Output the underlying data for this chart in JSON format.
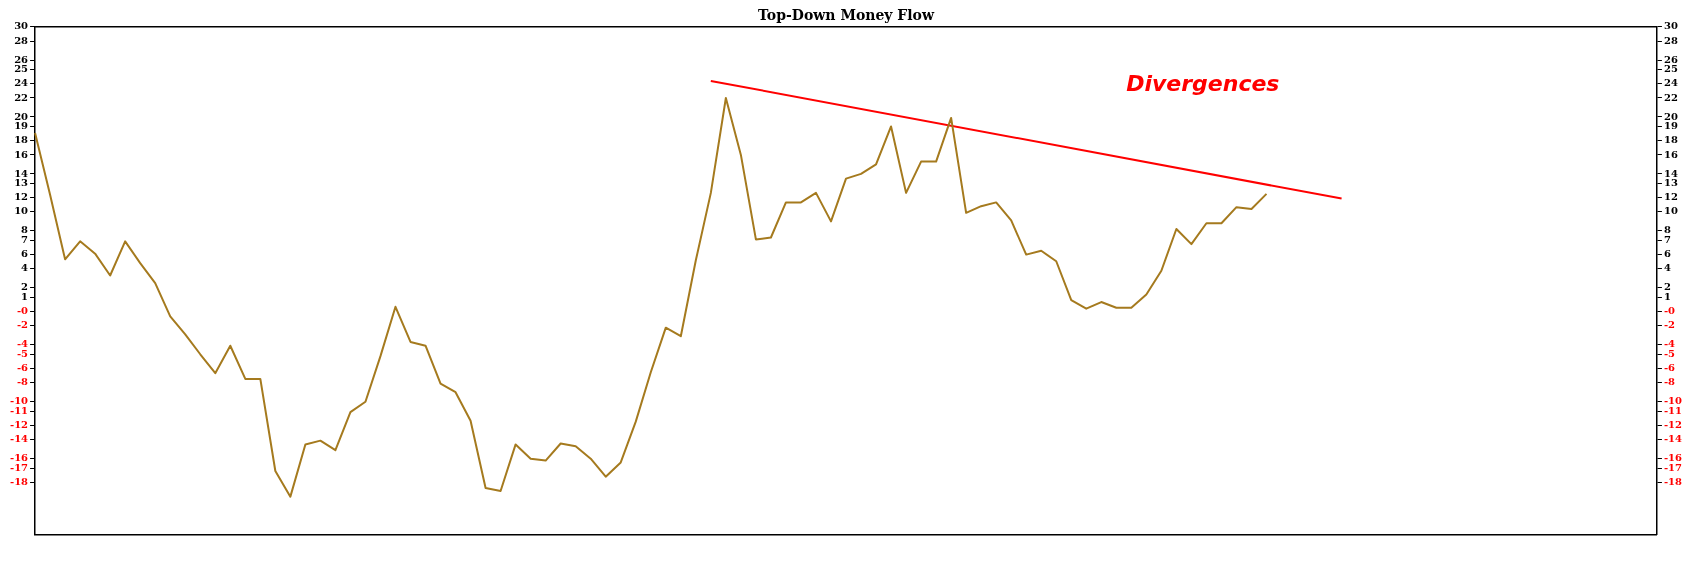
{
  "chart_data": {
    "type": "line",
    "title": "Top-Down Money Flow",
    "categories": [
      null,
      null,
      null,
      null,
      null,
      null,
      null,
      null,
      null,
      null,
      null,
      null,
      null,
      null,
      null,
      null,
      null,
      null,
      null,
      null,
      null,
      null,
      null,
      null,
      null,
      null,
      null,
      null,
      null,
      null,
      null,
      null,
      null,
      null,
      null,
      null,
      null,
      null,
      null,
      null,
      null,
      null,
      null,
      null,
      null,
      null,
      null,
      null,
      null,
      null,
      null,
      null,
      null,
      null,
      null,
      null,
      null,
      null,
      null,
      null,
      null,
      null,
      null,
      null,
      null,
      null,
      null,
      null,
      null,
      null,
      null,
      null,
      null,
      null,
      null,
      null,
      null,
      null,
      null,
      null,
      null,
      null,
      null,
      null,
      null,
      null,
      null,
      null,
      null,
      null,
      null,
      null,
      null,
      null,
      null,
      null,
      null,
      null,
      null,
      null,
      null,
      null,
      null,
      null,
      null,
      null,
      null,
      null,
      null
    ],
    "ylim": [
      -23.5,
      30
    ],
    "yticks": [
      30,
      {
        "value": 28.5,
        "label": "28"
      },
      {
        "value": 26.5,
        "label": "26"
      },
      {
        "value": 25.5,
        "label": "25"
      },
      24,
      {
        "value": 22.5,
        "label": "22"
      },
      {
        "value": 20.5,
        "label": "20"
      },
      {
        "value": 19.5,
        "label": "19"
      },
      18,
      {
        "value": 16.5,
        "label": "16"
      },
      {
        "value": 14.5,
        "label": "14"
      },
      {
        "value": 13.5,
        "label": "13"
      },
      12,
      {
        "value": 10.5,
        "label": "10"
      },
      {
        "value": 8.5,
        "label": "8"
      },
      {
        "value": 7.5,
        "label": "7"
      },
      6,
      {
        "value": 4.5,
        "label": "4"
      },
      {
        "value": 2.5,
        "label": "2"
      },
      {
        "value": 1.5,
        "label": "1"
      },
      {
        "value": 0,
        "label": "-0"
      },
      {
        "value": -1.5,
        "label": "-2"
      },
      {
        "value": -3.5,
        "label": "-4"
      },
      {
        "value": -4.5,
        "label": "-5"
      },
      -6,
      {
        "value": -7.5,
        "label": "-8"
      },
      {
        "value": -9.5,
        "label": "-10"
      },
      {
        "value": -10.5,
        "label": "-11"
      },
      -12,
      {
        "value": -13.5,
        "label": "-14"
      },
      {
        "value": -15.5,
        "label": "-16"
      },
      {
        "value": -16.5,
        "label": "-17"
      },
      -18
    ],
    "y2lim": [
      -23.5,
      30
    ],
    "y2ticks": [
      30,
      {
        "value": 28.5,
        "label": "28"
      },
      {
        "value": 26.5,
        "label": "26"
      },
      {
        "value": 25.5,
        "label": "25"
      },
      24,
      {
        "value": 22.5,
        "label": "22"
      },
      {
        "value": 20.5,
        "label": "20"
      },
      {
        "value": 19.5,
        "label": "19"
      },
      18,
      {
        "value": 16.5,
        "label": "16"
      },
      {
        "value": 14.5,
        "label": "14"
      },
      {
        "value": 13.5,
        "label": "13"
      },
      12,
      {
        "value": 10.5,
        "label": "10"
      },
      {
        "value": 8.5,
        "label": "8"
      },
      {
        "value": 7.5,
        "label": "7"
      },
      6,
      {
        "value": 4.5,
        "label": "4"
      },
      {
        "value": 2.5,
        "label": "2"
      },
      {
        "value": 1.5,
        "label": "1"
      },
      {
        "value": 0,
        "label": "-0"
      },
      {
        "value": -1.5,
        "label": "-2"
      },
      {
        "value": -3.5,
        "label": "-4"
      },
      {
        "value": -4.5,
        "label": "-5"
      },
      -6,
      {
        "value": -7.5,
        "label": "-8"
      },
      {
        "value": -9.5,
        "label": "-10"
      },
      {
        "value": -10.5,
        "label": "-11"
      },
      -12,
      {
        "value": -13.5,
        "label": "-14"
      },
      {
        "value": -15.5,
        "label": "-16"
      },
      {
        "value": -16.5,
        "label": "-17"
      },
      -18
    ],
    "grid": false,
    "legend": false,
    "marker": "none",
    "line_style": "solid",
    "annotations": [
      "Divergences"
    ],
    "series": [
      {
        "color": "#a57a1e",
        "values": [
          18.8,
          12.3,
          5.5,
          7.4,
          6.1,
          3.8,
          7.4,
          5.1,
          3.0,
          -0.5,
          -2.4,
          -4.5,
          -6.5,
          -3.6,
          -7.1,
          -7.1,
          -16.8,
          -19.5,
          -14.0,
          -13.6,
          -14.6,
          -10.6,
          -9.5,
          -4.7,
          0.5,
          -3.2,
          -3.6,
          -7.6,
          -8.5,
          -11.5,
          -18.6,
          -18.9,
          -14.0,
          -15.5,
          -15.7,
          -13.9,
          -14.2,
          -15.5,
          -17.4,
          -15.9,
          -11.6,
          -6.4,
          -1.7,
          -2.6,
          5.4,
          12.5,
          22.5,
          16.5,
          7.6,
          7.8,
          11.5,
          11.5,
          12.5,
          9.5,
          14.0,
          14.5,
          15.5,
          19.5,
          12.5,
          15.8,
          15.8,
          20.4,
          10.4,
          11.1,
          11.5,
          9.6,
          6.0,
          6.4,
          5.3,
          1.2,
          0.3,
          1.0,
          0.4,
          0.4,
          1.8,
          4.3,
          8.7,
          7.1,
          9.3,
          9.3,
          11.0,
          10.8,
          12.4,
          null,
          null,
          null,
          null,
          null,
          null,
          null,
          null,
          null,
          null,
          null,
          null,
          null,
          null,
          null,
          null,
          null,
          null,
          null,
          null,
          null,
          null,
          null,
          null,
          null,
          null
        ]
      },
      {
        "type": "line",
        "color": "#ff0000",
        "values": [
          null,
          null,
          null,
          null,
          null,
          null,
          null,
          null,
          null,
          null,
          null,
          null,
          null,
          null,
          null,
          null,
          null,
          null,
          null,
          null,
          null,
          null,
          null,
          null,
          null,
          null,
          null,
          null,
          null,
          null,
          null,
          null,
          null,
          null,
          null,
          null,
          null,
          null,
          null,
          null,
          null,
          null,
          null,
          null,
          null,
          24.3,
          null,
          null,
          null,
          null,
          null,
          null,
          null,
          null,
          null,
          null,
          null,
          null,
          null,
          null,
          null,
          null,
          null,
          null,
          null,
          null,
          null,
          null,
          null,
          null,
          null,
          null,
          null,
          null,
          null,
          null,
          null,
          null,
          null,
          null,
          null,
          null,
          null,
          null,
          null,
          null,
          null,
          11.9,
          null,
          null,
          null,
          null,
          null,
          null,
          null,
          null,
          null,
          null,
          null,
          null,
          null,
          null,
          null,
          null,
          null,
          null,
          null,
          null,
          null
        ]
      }
    ]
  }
}
